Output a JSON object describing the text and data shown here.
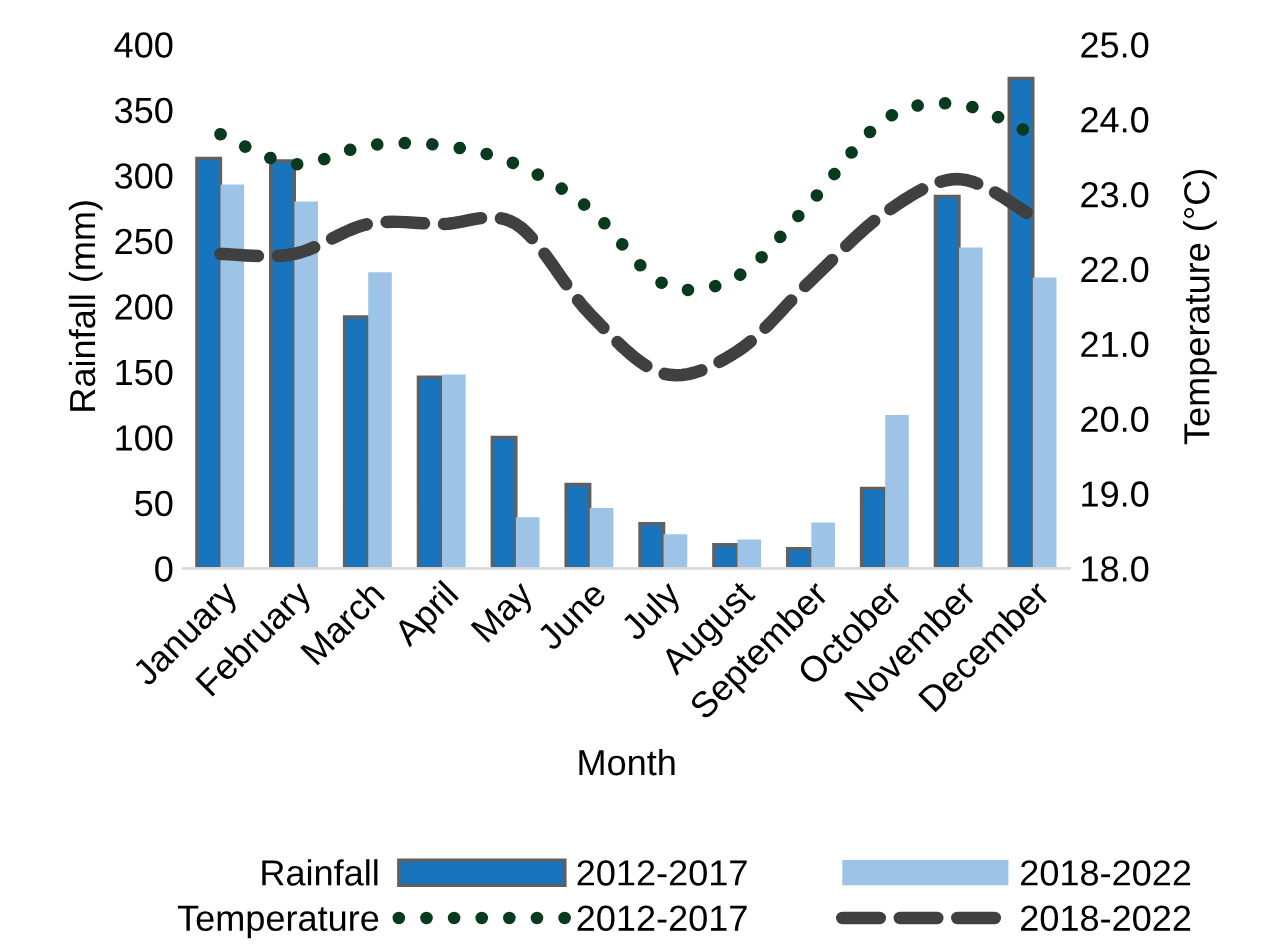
{
  "chart_data": {
    "type": "bar",
    "xlabel": "Month",
    "ylabel": "Rainfall (mm)",
    "y2label": "Temperature (°C)",
    "categories": [
      "January",
      "February",
      "March",
      "April",
      "May",
      "June",
      "July",
      "August",
      "September",
      "October",
      "November",
      "December"
    ],
    "series": [
      {
        "name": "2012-2017",
        "color": "#1874bc",
        "values": [
          313,
          311,
          192,
          146,
          100,
          64,
          34,
          18,
          15,
          61,
          284,
          374
        ]
      },
      {
        "name": "2018-2022",
        "color": "#9dc3e6",
        "values": [
          293,
          280,
          226,
          148,
          39,
          46,
          26,
          22,
          35,
          117,
          245,
          222
        ]
      },
      {
        "name": "2012-2017",
        "type": "line",
        "axis": "y2",
        "color": "#0a3a1e",
        "line_style": "dotted",
        "values": [
          23.8,
          23.4,
          23.65,
          23.65,
          23.4,
          22.8,
          21.8,
          21.9,
          22.9,
          24.0,
          24.2,
          23.8
        ]
      },
      {
        "name": "2018-2022",
        "type": "line",
        "axis": "y2",
        "color": "#404040",
        "line_style": "dashed",
        "values": [
          22.2,
          22.2,
          22.6,
          22.6,
          22.6,
          21.4,
          20.6,
          20.9,
          21.85,
          22.75,
          23.2,
          22.7
        ]
      }
    ],
    "ylim": [
      0,
      400
    ],
    "yticks": [
      0,
      50,
      100,
      150,
      200,
      250,
      300,
      350,
      400
    ],
    "y2lim": [
      18.0,
      25.0
    ],
    "y2ticks": [
      {
        "value": 18,
        "label": "18.0"
      },
      {
        "value": 19,
        "label": "19.0"
      },
      {
        "value": 20,
        "label": "20.0"
      },
      {
        "value": 21,
        "label": "21.0"
      },
      {
        "value": 22,
        "label": "22.0"
      },
      {
        "value": 23,
        "label": "23.0"
      },
      {
        "value": 24,
        "label": "24.0"
      },
      {
        "value": 25,
        "label": "25.0"
      }
    ],
    "annotations": [
      "Rainfall",
      "Temperature"
    ],
    "legend": "bottom",
    "grid": false
  }
}
